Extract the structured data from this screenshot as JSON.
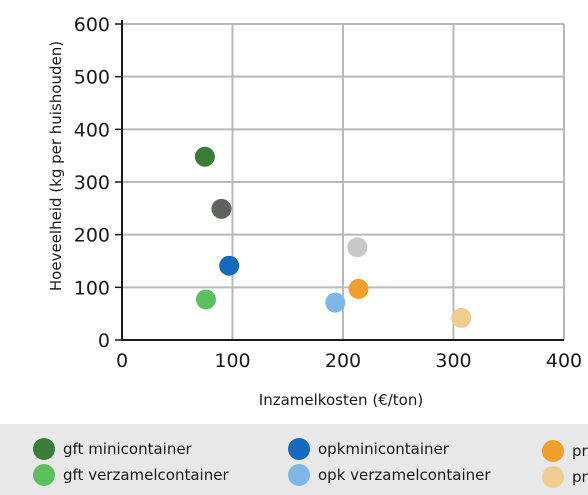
{
  "chart_data": {
    "type": "scatter",
    "title": "",
    "xlabel": "Inzamelkosten (€/ton)",
    "ylabel": "Hoeveelheid (kg per huishouden)",
    "xlim": [
      0,
      400
    ],
    "ylim": [
      0,
      600
    ],
    "x_ticks": [
      "0",
      "100",
      "200",
      "300",
      "400"
    ],
    "y_ticks": [
      "0",
      "100",
      "200",
      "300",
      "400",
      "500",
      "600"
    ],
    "grid": true,
    "legend_position": "bottom",
    "series": [
      {
        "name": "gft minicontainer",
        "color": "#3a7d3a",
        "x": [
          75
        ],
        "y": [
          348
        ]
      },
      {
        "name": "gft verzamelcontainer",
        "color": "#5cc05c",
        "x": [
          76
        ],
        "y": [
          77
        ]
      },
      {
        "name": "",
        "color": "#5d635d",
        "x": [
          90
        ],
        "y": [
          249
        ]
      },
      {
        "name": "opkminicontainer",
        "color": "#1669c0",
        "x": [
          97
        ],
        "y": [
          141
        ]
      },
      {
        "name": "opk verzamelcontainer",
        "color": "#7eb6e6",
        "x": [
          193
        ],
        "y": [
          71
        ]
      },
      {
        "name": "",
        "color": "#c8c8c8",
        "x": [
          213
        ],
        "y": [
          176
        ]
      },
      {
        "name": "pr",
        "color": "#f0a02a",
        "x": [
          214
        ],
        "y": [
          97
        ]
      },
      {
        "name": "pr",
        "color": "#efcc90",
        "x": [
          307
        ],
        "y": [
          42
        ]
      }
    ]
  },
  "legend": [
    {
      "label": "gft minicontainer",
      "color": "#3a7d3a"
    },
    {
      "label": "gft verzamelcontainer",
      "color": "#5cc05c"
    },
    {
      "label": "opkminicontainer",
      "color": "#1669c0"
    },
    {
      "label": "opk verzamelcontainer",
      "color": "#7eb6e6"
    },
    {
      "label": "pr",
      "color": "#f0a02a"
    },
    {
      "label": "pr",
      "color": "#efcc90"
    }
  ]
}
